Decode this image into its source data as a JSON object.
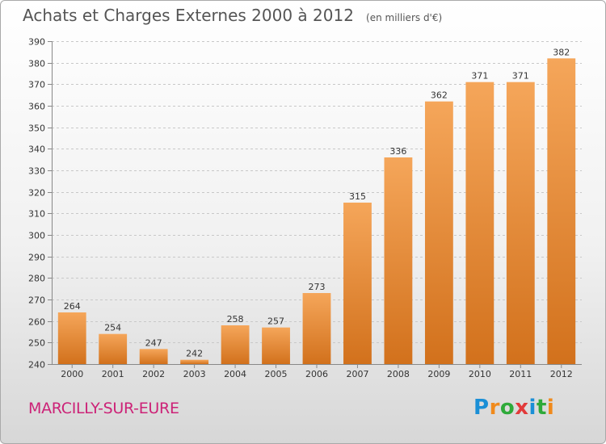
{
  "header": {
    "title": "Achats et Charges Externes 2000 à 2012",
    "unit": "(en milliers d'€)"
  },
  "footer": {
    "commune": "MARCILLY-SUR-EURE",
    "logo": {
      "text": "Proxiti",
      "letters": [
        "P",
        "r",
        "o",
        "x",
        "i",
        "t",
        "i"
      ],
      "colors": [
        "#1a8fd6",
        "#f08a1c",
        "#2eaa3a",
        "#e23a3a",
        "#1a8fd6",
        "#2eaa3a",
        "#f08a1c"
      ]
    }
  },
  "chart_data": {
    "type": "bar",
    "categories": [
      "2000",
      "2001",
      "2002",
      "2003",
      "2004",
      "2005",
      "2006",
      "2007",
      "2008",
      "2009",
      "2010",
      "2011",
      "2012"
    ],
    "values": [
      264,
      254,
      247,
      242,
      258,
      257,
      273,
      315,
      336,
      362,
      371,
      371,
      382
    ],
    "ylim": [
      240,
      390
    ],
    "yticks": [
      240,
      250,
      260,
      270,
      280,
      290,
      300,
      310,
      320,
      330,
      340,
      350,
      360,
      370,
      380,
      390
    ],
    "grid": true,
    "colors": {
      "bar_top": "#f5a65a",
      "bar_bottom": "#d2711c",
      "grid": "#c8c8c8"
    }
  }
}
